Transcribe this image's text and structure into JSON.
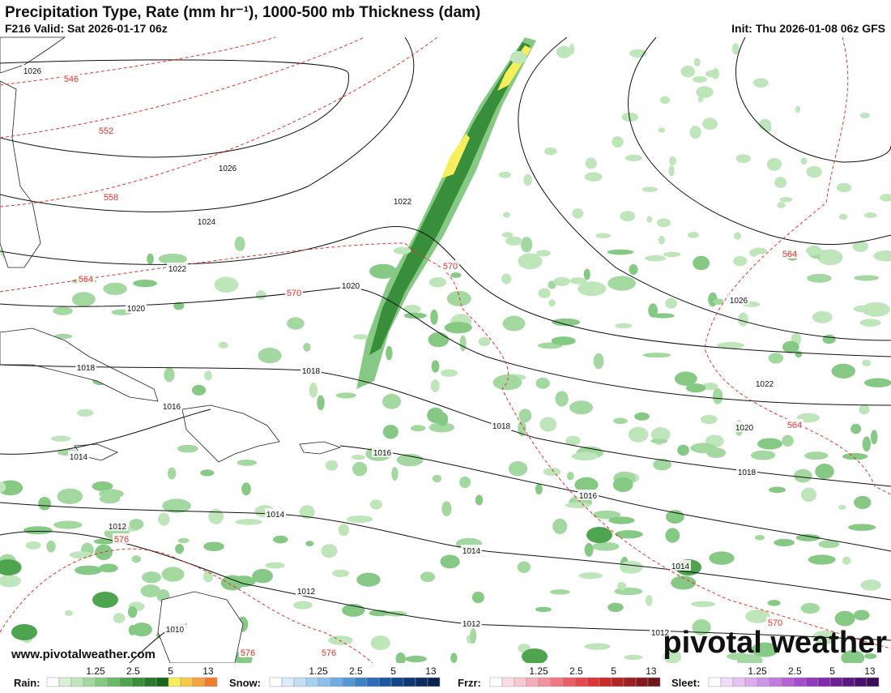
{
  "header": {
    "title": "Precipitation Type, Rate (mm hr⁻¹), 1000-500 mb Thickness (dam)",
    "valid": "F216 Valid: Sat 2026-01-17 06z",
    "init": "Init: Thu 2026-01-08 06z GFS"
  },
  "map": {
    "isobar_labels": [
      "1026",
      "1026",
      "1024",
      "1022",
      "1020",
      "1018",
      "1016",
      "1014",
      "1012",
      "1012",
      "1010",
      "1022",
      "1020",
      "1018",
      "1016",
      "1018",
      "1016",
      "1014",
      "1014",
      "1014",
      "1012",
      "1012",
      "1026",
      "1022",
      "1020",
      "1018"
    ],
    "thickness_labels": [
      "546",
      "552",
      "558",
      "564",
      "570",
      "570",
      "564",
      "564",
      "576",
      "576",
      "576",
      "570"
    ],
    "website": "www.pivotalweather.com",
    "watermark": "pivotal weather"
  },
  "legend": [
    {
      "name": "Rain:",
      "ticks": [
        "1.25",
        "2.5",
        "5",
        "13"
      ],
      "colors": [
        "#fff",
        "#d8f0d6",
        "#bfe6bb",
        "#a3d9a0",
        "#86c984",
        "#6ab86a",
        "#4fa450",
        "#398e3c",
        "#277a2c",
        "#16661e",
        "#f6ee5a",
        "#f7c94a",
        "#f5a33c",
        "#ef7d2e"
      ]
    },
    {
      "name": "Snow:",
      "ticks": [
        "1.25",
        "2.5",
        "5",
        "13"
      ],
      "colors": [
        "#fff",
        "#dcedf9",
        "#c2e0f5",
        "#a6d0f0",
        "#8cc0ea",
        "#70ade2",
        "#5598d6",
        "#3d83c8",
        "#2a6db6",
        "#1b58a0",
        "#124689",
        "#0d3874",
        "#0a2c60",
        "#082250"
      ]
    },
    {
      "name": "Frzr:",
      "ticks": [
        "1.25",
        "2.5",
        "5",
        "13"
      ],
      "colors": [
        "#fff",
        "#fbdde3",
        "#f8c7d0",
        "#f5adb9",
        "#f3919f",
        "#f07784",
        "#ec5d68",
        "#e6474e",
        "#dc3537",
        "#cb2a2c",
        "#b52525",
        "#9c1f22",
        "#851a1e",
        "#6e161a"
      ]
    },
    {
      "name": "Sleet:",
      "ticks": [
        "1.25",
        "2.5",
        "5",
        "13"
      ],
      "colors": [
        "#fff",
        "#f1dcf7",
        "#e6c3f2",
        "#dbabed",
        "#cf93e6",
        "#c27bdf",
        "#b463d6",
        "#a44ccc",
        "#9239bd",
        "#7f2bab",
        "#6c2196",
        "#5a1980",
        "#49136b",
        "#3a0f57"
      ]
    }
  ]
}
